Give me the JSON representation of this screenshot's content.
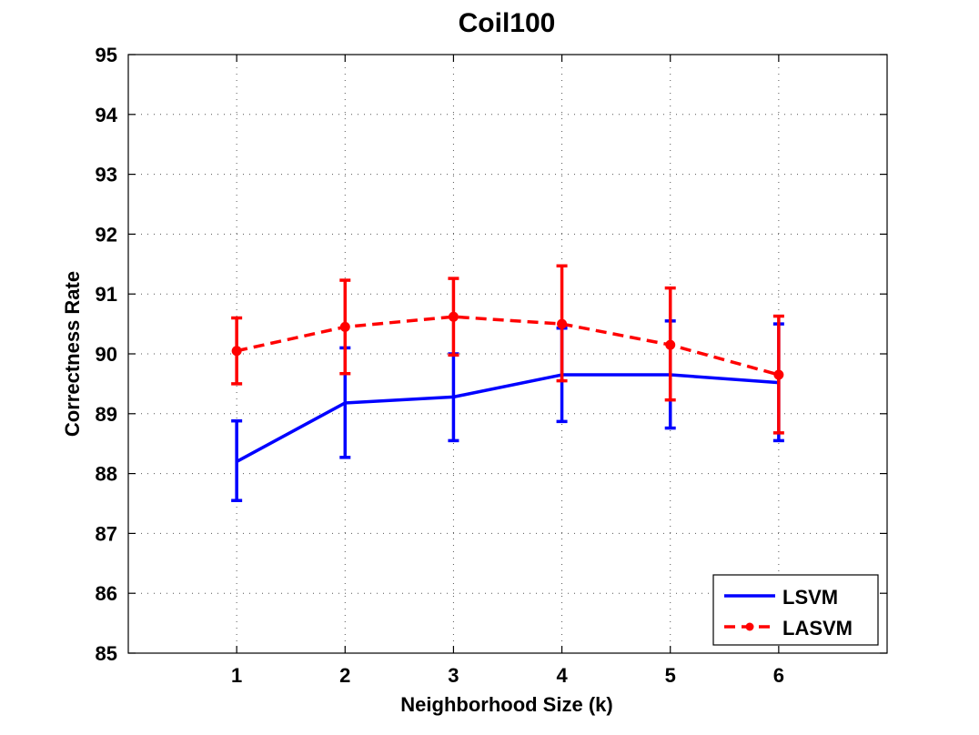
{
  "chart_data": {
    "type": "line",
    "title": "Coil100",
    "xlabel": "Neighborhood Size (k)",
    "ylabel": "Correctness Rate",
    "x": [
      1,
      2,
      3,
      4,
      5,
      6
    ],
    "xlim": [
      0,
      7
    ],
    "ylim": [
      85,
      95
    ],
    "xticks": [
      "1",
      "2",
      "3",
      "4",
      "5",
      "6"
    ],
    "yticks": [
      "85",
      "86",
      "87",
      "88",
      "89",
      "90",
      "91",
      "92",
      "93",
      "94",
      "95"
    ],
    "grid": true,
    "legend_position": "bottom-right",
    "series": [
      {
        "name": "LSVM",
        "color": "#0000ff",
        "line_style": "solid",
        "marker": "none",
        "values": [
          88.2,
          89.18,
          89.28,
          89.65,
          89.65,
          89.52
        ],
        "error_lower": [
          87.55,
          88.27,
          88.55,
          88.87,
          88.76,
          88.55
        ],
        "error_upper": [
          88.88,
          90.1,
          90.0,
          90.43,
          90.55,
          90.5
        ]
      },
      {
        "name": "LASVM",
        "color": "#ff0000",
        "line_style": "dashed",
        "marker": "dot",
        "values": [
          90.05,
          90.45,
          90.62,
          90.5,
          90.15,
          89.65
        ],
        "error_lower": [
          89.5,
          89.67,
          89.98,
          89.55,
          89.23,
          88.68
        ],
        "error_upper": [
          90.6,
          91.23,
          91.26,
          91.47,
          91.1,
          90.63
        ]
      }
    ]
  }
}
